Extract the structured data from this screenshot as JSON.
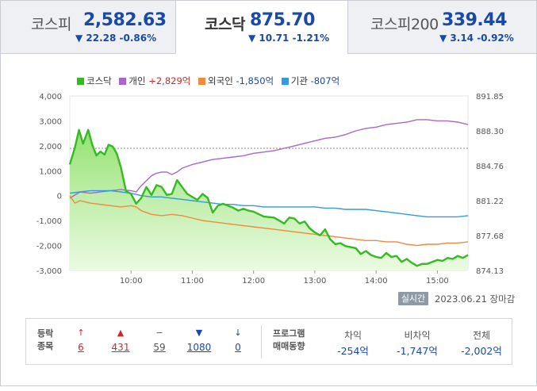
{
  "tabs": [
    {
      "name": "코스피",
      "value": "2,582.63",
      "change": "▼ 22.28 -0.86%"
    },
    {
      "name": "코스닥",
      "value": "875.70",
      "change": "▼ 10.71 -1.21%"
    },
    {
      "name": "코스피200",
      "value": "339.44",
      "change": "▼ 3.14 -0.92%"
    }
  ],
  "legend": {
    "kosdaq": "코스닥",
    "individual_label": "개인",
    "individual_value": "+2,829억",
    "foreign_label": "외국인",
    "foreign_value": "-1,850억",
    "institution_label": "기관",
    "institution_value": "-807억"
  },
  "colors": {
    "kosdaq": "#33bb22",
    "individual": "#aa66cc",
    "foreign": "#f08a3c",
    "institution": "#2f9be0",
    "up": "#d12a2a",
    "down": "#1a4aa8"
  },
  "chart_data": {
    "type": "line",
    "title": "",
    "x_ticks": [
      "10:00",
      "11:00",
      "12:00",
      "13:00",
      "14:00",
      "15:00"
    ],
    "y_left_ticks": [
      "4,000",
      "3,000",
      "2,000",
      "1,000",
      "0",
      "-1,000",
      "-2,000",
      "-3,000"
    ],
    "y_right_ticks": [
      "891.85",
      "888.30",
      "884.76",
      "881.22",
      "877.68",
      "874.13"
    ],
    "ylim_left": [
      -3000,
      4000
    ],
    "ylim_right": [
      874.13,
      891.85
    ],
    "x_range": [
      "09:00",
      "15:30"
    ],
    "reference_line_left": 1900,
    "series": [
      {
        "name": "코스닥",
        "axis": "right",
        "values": [
          [
            "09:00",
            884.9
          ],
          [
            "09:05",
            886.6
          ],
          [
            "09:09",
            888.4
          ],
          [
            "09:13",
            887.0
          ],
          [
            "09:18",
            888.4
          ],
          [
            "09:22",
            886.9
          ],
          [
            "09:26",
            885.8
          ],
          [
            "09:30",
            886.2
          ],
          [
            "09:34",
            885.9
          ],
          [
            "09:38",
            886.9
          ],
          [
            "09:42",
            886.7
          ],
          [
            "09:46",
            886.0
          ],
          [
            "09:50",
            884.6
          ],
          [
            "09:55",
            882.2
          ],
          [
            "10:00",
            881.9
          ],
          [
            "10:05",
            880.9
          ],
          [
            "10:10",
            881.5
          ],
          [
            "10:15",
            882.6
          ],
          [
            "10:20",
            881.8
          ],
          [
            "10:25",
            882.8
          ],
          [
            "10:30",
            882.6
          ],
          [
            "10:35",
            881.8
          ],
          [
            "10:40",
            881.9
          ],
          [
            "10:45",
            883.3
          ],
          [
            "10:50",
            882.6
          ],
          [
            "10:55",
            881.9
          ],
          [
            "11:00",
            881.6
          ],
          [
            "11:05",
            881.3
          ],
          [
            "11:10",
            881.9
          ],
          [
            "11:15",
            881.5
          ],
          [
            "11:20",
            880.0
          ],
          [
            "11:25",
            880.7
          ],
          [
            "11:30",
            880.9
          ],
          [
            "11:35",
            880.7
          ],
          [
            "11:40",
            880.5
          ],
          [
            "11:45",
            880.2
          ],
          [
            "11:50",
            880.4
          ],
          [
            "11:55",
            880.2
          ],
          [
            "12:00",
            880.1
          ],
          [
            "12:10",
            879.6
          ],
          [
            "12:20",
            879.5
          ],
          [
            "12:30",
            878.9
          ],
          [
            "12:35",
            879.5
          ],
          [
            "12:40",
            879.4
          ],
          [
            "12:45",
            878.9
          ],
          [
            "12:50",
            879.1
          ],
          [
            "12:55",
            878.4
          ],
          [
            "13:00",
            878.0
          ],
          [
            "13:05",
            877.7
          ],
          [
            "13:10",
            878.3
          ],
          [
            "13:15",
            877.3
          ],
          [
            "13:20",
            876.8
          ],
          [
            "13:25",
            876.9
          ],
          [
            "13:30",
            876.6
          ],
          [
            "13:40",
            876.4
          ],
          [
            "13:45",
            875.8
          ],
          [
            "13:50",
            876.1
          ],
          [
            "13:55",
            875.7
          ],
          [
            "14:00",
            875.5
          ],
          [
            "14:05",
            875.4
          ],
          [
            "14:10",
            875.9
          ],
          [
            "14:15",
            875.5
          ],
          [
            "14:20",
            875.6
          ],
          [
            "14:25",
            875.0
          ],
          [
            "14:30",
            875.3
          ],
          [
            "14:35",
            874.9
          ],
          [
            "14:40",
            874.6
          ],
          [
            "14:45",
            874.8
          ],
          [
            "14:50",
            874.8
          ],
          [
            "15:00",
            875.2
          ],
          [
            "15:05",
            875.1
          ],
          [
            "15:10",
            875.4
          ],
          [
            "15:15",
            875.3
          ],
          [
            "15:20",
            875.6
          ],
          [
            "15:25",
            875.4
          ],
          [
            "15:30",
            875.7
          ]
        ]
      },
      {
        "name": "개인",
        "axis": "left",
        "values": [
          [
            "09:00",
            -100
          ],
          [
            "09:10",
            150
          ],
          [
            "09:20",
            100
          ],
          [
            "09:30",
            150
          ],
          [
            "09:40",
            200
          ],
          [
            "09:50",
            250
          ],
          [
            "10:00",
            200
          ],
          [
            "10:05",
            150
          ],
          [
            "10:10",
            400
          ],
          [
            "10:15",
            600
          ],
          [
            "10:20",
            800
          ],
          [
            "10:25",
            900
          ],
          [
            "10:30",
            950
          ],
          [
            "10:35",
            950
          ],
          [
            "10:40",
            850
          ],
          [
            "10:45",
            950
          ],
          [
            "10:50",
            1100
          ],
          [
            "11:00",
            1250
          ],
          [
            "11:10",
            1350
          ],
          [
            "11:20",
            1450
          ],
          [
            "11:30",
            1500
          ],
          [
            "11:40",
            1550
          ],
          [
            "11:50",
            1600
          ],
          [
            "12:00",
            1700
          ],
          [
            "12:10",
            1750
          ],
          [
            "12:20",
            1800
          ],
          [
            "12:30",
            1900
          ],
          [
            "12:40",
            2000
          ],
          [
            "12:50",
            2100
          ],
          [
            "13:00",
            2200
          ],
          [
            "13:10",
            2300
          ],
          [
            "13:20",
            2350
          ],
          [
            "13:30",
            2450
          ],
          [
            "13:40",
            2600
          ],
          [
            "13:50",
            2700
          ],
          [
            "14:00",
            2750
          ],
          [
            "14:10",
            2850
          ],
          [
            "14:20",
            2900
          ],
          [
            "14:30",
            2950
          ],
          [
            "14:40",
            3050
          ],
          [
            "14:50",
            3050
          ],
          [
            "15:00",
            3000
          ],
          [
            "15:10",
            3000
          ],
          [
            "15:20",
            2950
          ],
          [
            "15:30",
            2850
          ]
        ]
      },
      {
        "name": "외국인",
        "axis": "left",
        "values": [
          [
            "09:00",
            0
          ],
          [
            "09:05",
            -300
          ],
          [
            "09:10",
            -200
          ],
          [
            "09:20",
            -300
          ],
          [
            "09:30",
            -350
          ],
          [
            "09:40",
            -400
          ],
          [
            "09:50",
            -450
          ],
          [
            "10:00",
            -400
          ],
          [
            "10:05",
            -450
          ],
          [
            "10:10",
            -600
          ],
          [
            "10:20",
            -750
          ],
          [
            "10:30",
            -800
          ],
          [
            "10:40",
            -750
          ],
          [
            "10:50",
            -800
          ],
          [
            "11:00",
            -900
          ],
          [
            "11:10",
            -1000
          ],
          [
            "11:20",
            -1050
          ],
          [
            "11:30",
            -1100
          ],
          [
            "11:40",
            -1150
          ],
          [
            "11:50",
            -1200
          ],
          [
            "12:00",
            -1250
          ],
          [
            "12:10",
            -1300
          ],
          [
            "12:20",
            -1350
          ],
          [
            "12:30",
            -1400
          ],
          [
            "12:40",
            -1450
          ],
          [
            "12:50",
            -1500
          ],
          [
            "13:00",
            -1550
          ],
          [
            "13:10",
            -1600
          ],
          [
            "13:20",
            -1650
          ],
          [
            "13:30",
            -1700
          ],
          [
            "13:40",
            -1750
          ],
          [
            "13:50",
            -1800
          ],
          [
            "14:00",
            -1800
          ],
          [
            "14:10",
            -1850
          ],
          [
            "14:20",
            -1850
          ],
          [
            "14:30",
            -1950
          ],
          [
            "14:40",
            -2000
          ],
          [
            "14:50",
            -1950
          ],
          [
            "15:00",
            -1950
          ],
          [
            "15:10",
            -1900
          ],
          [
            "15:20",
            -1900
          ],
          [
            "15:30",
            -1850
          ]
        ]
      },
      {
        "name": "기관",
        "axis": "left",
        "values": [
          [
            "09:00",
            100
          ],
          [
            "09:10",
            150
          ],
          [
            "09:20",
            200
          ],
          [
            "09:30",
            200
          ],
          [
            "09:40",
            200
          ],
          [
            "09:50",
            150
          ],
          [
            "10:00",
            100
          ],
          [
            "10:10",
            0
          ],
          [
            "10:20",
            -50
          ],
          [
            "10:30",
            -50
          ],
          [
            "10:40",
            -100
          ],
          [
            "10:50",
            -150
          ],
          [
            "11:00",
            -200
          ],
          [
            "11:10",
            -250
          ],
          [
            "11:20",
            -300
          ],
          [
            "11:30",
            -350
          ],
          [
            "11:40",
            -350
          ],
          [
            "11:50",
            -400
          ],
          [
            "12:00",
            -400
          ],
          [
            "12:10",
            -450
          ],
          [
            "12:20",
            -450
          ],
          [
            "12:30",
            -450
          ],
          [
            "12:40",
            -450
          ],
          [
            "12:50",
            -450
          ],
          [
            "13:00",
            -450
          ],
          [
            "13:10",
            -500
          ],
          [
            "13:20",
            -500
          ],
          [
            "13:30",
            -550
          ],
          [
            "13:40",
            -550
          ],
          [
            "13:50",
            -550
          ],
          [
            "14:00",
            -600
          ],
          [
            "14:10",
            -650
          ],
          [
            "14:20",
            -700
          ],
          [
            "14:30",
            -750
          ],
          [
            "14:40",
            -800
          ],
          [
            "14:50",
            -850
          ],
          [
            "15:00",
            -850
          ],
          [
            "15:10",
            -850
          ],
          [
            "15:20",
            -850
          ],
          [
            "15:30",
            -800
          ]
        ]
      }
    ]
  },
  "status": {
    "live_button": "실시간",
    "date_text": "2023.06.21 장마감"
  },
  "stats": {
    "label_line1": "등락",
    "label_line2": "종목",
    "items": [
      {
        "icon": "↑",
        "name": "upper-limit",
        "count": "6",
        "color": "#d12a2a"
      },
      {
        "icon": "▲",
        "name": "rise",
        "count": "431",
        "color": "#d12a2a"
      },
      {
        "icon": "−",
        "name": "unchanged",
        "count": "59",
        "color": "#555555"
      },
      {
        "icon": "▼",
        "name": "fall",
        "count": "1080",
        "color": "#1a4aa8"
      },
      {
        "icon": "↓",
        "name": "lower-limit",
        "count": "0",
        "color": "#1a4aa8"
      }
    ],
    "program_line1": "프로그램",
    "program_line2": "매매동향",
    "program": [
      {
        "head": "차익",
        "value": "-254억"
      },
      {
        "head": "비차익",
        "value": "-1,747억"
      },
      {
        "head": "전체",
        "value": "-2,002억"
      }
    ]
  }
}
